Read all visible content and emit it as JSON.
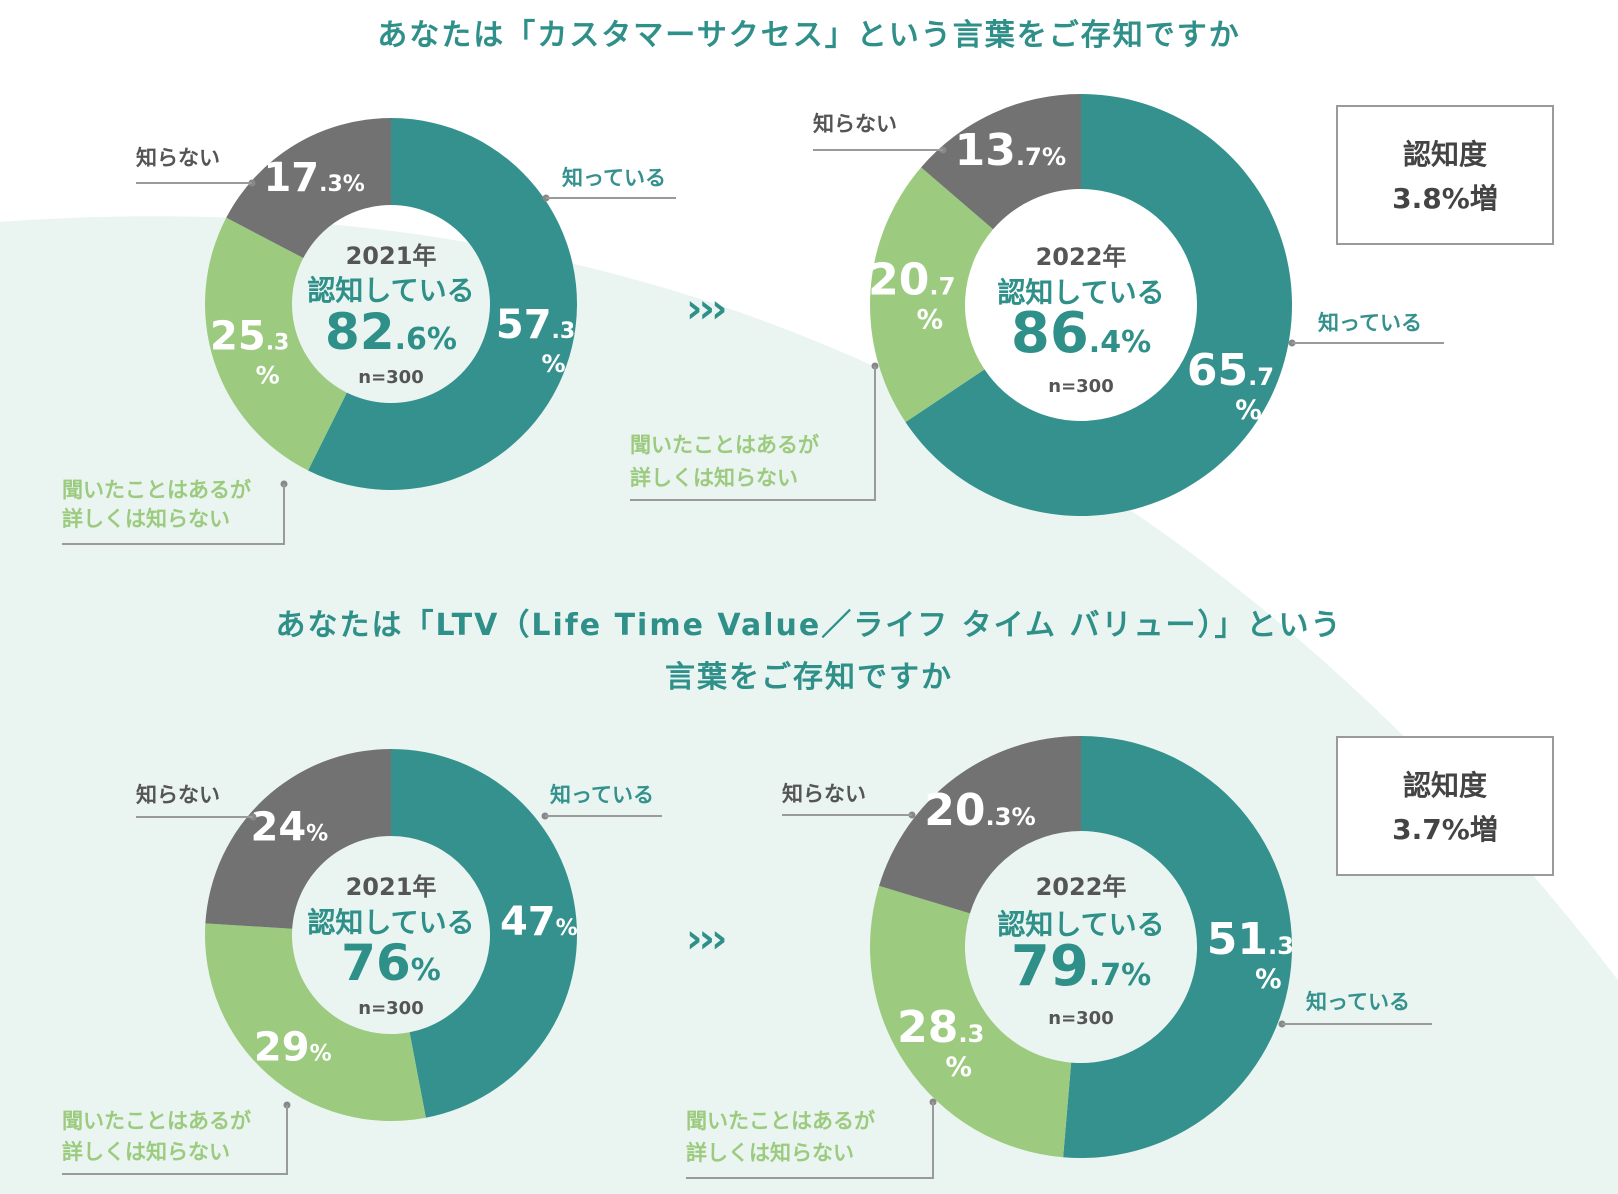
{
  "sections": [
    {
      "question": "あなたは「カスタマーサクセス」という言葉をご存知ですか",
      "arrows": "›››",
      "callout": {
        "line1": "認知度",
        "line2": "3.8%増"
      }
    },
    {
      "question_line1": "あなたは「LTV（Life Time Value／ライフ タイム バリュー）」という",
      "question_line2": "言葉をご存知ですか",
      "arrows": "›››",
      "callout": {
        "line1": "認知度",
        "line2": "3.7%増"
      }
    }
  ],
  "colors": {
    "know": "#35918e",
    "heard": "#9ccb80",
    "dont_know": "#727272",
    "title": "#2f8f89",
    "background_curve": "#eaf5f1"
  },
  "chart_data": [
    {
      "type": "pie",
      "question": "あなたは「カスタマーサクセス」という言葉をご存知ですか",
      "year": "2021年",
      "center_label": "認知している",
      "total_int": "82",
      "total_dec": ".6%",
      "n": "n=300",
      "series": [
        {
          "name": "知っている",
          "value": 57.3,
          "int": "57",
          "dec": ".3",
          "pct": "%",
          "wrap": true
        },
        {
          "name": "聞いたことはあるが\n詳しくは知らない",
          "value": 25.3,
          "int": "25",
          "dec": ".3",
          "pct": "%",
          "wrap": true
        },
        {
          "name": "知らない",
          "value": 17.3,
          "int": "17",
          "dec": ".3",
          "pct": "%",
          "wrap": false
        }
      ]
    },
    {
      "type": "pie",
      "question": "あなたは「カスタマーサクセス」という言葉をご存知ですか",
      "year": "2022年",
      "center_label": "認知している",
      "total_int": "86",
      "total_dec": ".4%",
      "n": "n=300",
      "series": [
        {
          "name": "知っている",
          "value": 65.7,
          "int": "65",
          "dec": ".7",
          "pct": "%",
          "wrap": true
        },
        {
          "name": "聞いたことはあるが\n詳しくは知らない",
          "value": 20.7,
          "int": "20",
          "dec": ".7",
          "pct": "%",
          "wrap": true
        },
        {
          "name": "知らない",
          "value": 13.7,
          "int": "13",
          "dec": ".7",
          "pct": "%",
          "wrap": false
        }
      ]
    },
    {
      "type": "pie",
      "question": "あなたは「LTV（Life Time Value／ライフ タイム バリュー）」という言葉をご存知ですか",
      "year": "2021年",
      "center_label": "認知している",
      "total_int": "76",
      "total_dec": "%",
      "n": "n=300",
      "series": [
        {
          "name": "知っている",
          "value": 47,
          "int": "47",
          "dec": "",
          "pct": "%",
          "wrap": false
        },
        {
          "name": "聞いたことはあるが\n詳しくは知らない",
          "value": 29,
          "int": "29",
          "dec": "",
          "pct": "%",
          "wrap": false
        },
        {
          "name": "知らない",
          "value": 24,
          "int": "24",
          "dec": "",
          "pct": "%",
          "wrap": false
        }
      ]
    },
    {
      "type": "pie",
      "question": "あなたは「LTV（Life Time Value／ライフ タイム バリュー）」という言葉をご存知ですか",
      "year": "2022年",
      "center_label": "認知している",
      "total_int": "79",
      "total_dec": ".7%",
      "n": "n=300",
      "series": [
        {
          "name": "知っている",
          "value": 51.3,
          "int": "51",
          "dec": ".3",
          "pct": "%",
          "wrap": true
        },
        {
          "name": "聞いたことはあるが\n詳しくは知らない",
          "value": 28.3,
          "int": "28",
          "dec": ".3",
          "pct": "%",
          "wrap": true
        },
        {
          "name": "知らない",
          "value": 20.3,
          "int": "20",
          "dec": ".3",
          "pct": "%",
          "wrap": false
        }
      ]
    }
  ]
}
